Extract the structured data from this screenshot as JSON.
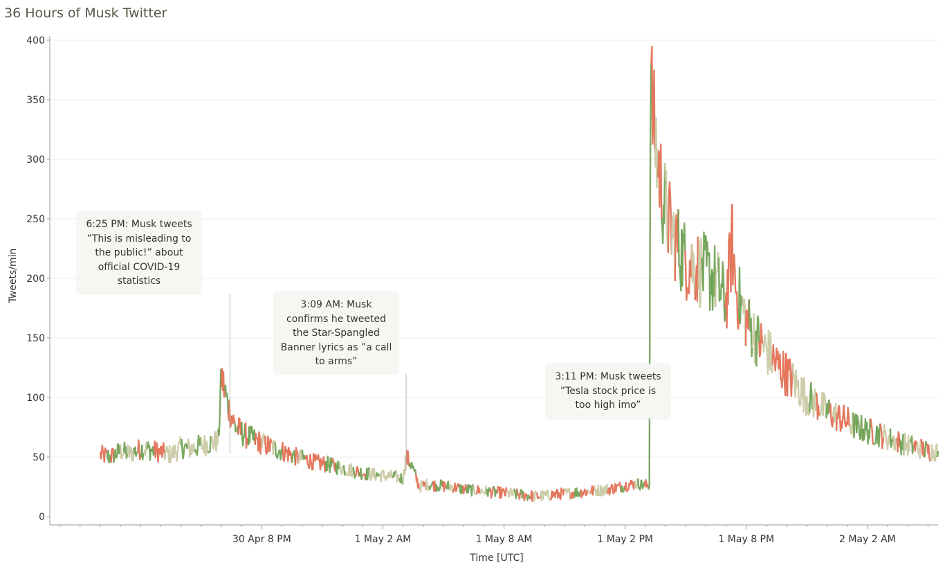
{
  "chart_data": {
    "type": "line",
    "title": "36 Hours of Musk Twitter",
    "xlabel": "Time [UTC]",
    "ylabel": "Tweets/min",
    "ylim": [
      0,
      400
    ],
    "xlim_hours_from_30apr_12pm": [
      -2.5,
      41.5
    ],
    "yticks": [
      "0",
      "50",
      "100",
      "150",
      "200",
      "250",
      "300",
      "350",
      "400"
    ],
    "xticks": [
      {
        "label": "30 Apr 8 PM",
        "hours": 8
      },
      {
        "label": "1 May 2 AM",
        "hours": 14
      },
      {
        "label": "1 May 8 AM",
        "hours": 20
      },
      {
        "label": "1 May 2 PM",
        "hours": 26
      },
      {
        "label": "1 May 8 PM",
        "hours": 32
      },
      {
        "label": "2 May 2 AM",
        "hours": 38
      }
    ],
    "grid": true,
    "colors": {
      "low": "#6b9f4f",
      "mid": "#c9c9a3",
      "high": "#e26a4f"
    },
    "series": [
      {
        "name": "",
        "points": [
          [
            0,
            52
          ],
          [
            0.5,
            50
          ],
          [
            1,
            55
          ],
          [
            1.5,
            53
          ],
          [
            2,
            57
          ],
          [
            2.5,
            56
          ],
          [
            3,
            54
          ],
          [
            3.5,
            52
          ],
          [
            4,
            58
          ],
          [
            4.5,
            57
          ],
          [
            5,
            60
          ],
          [
            5.5,
            62
          ],
          [
            5.85,
            64
          ],
          [
            6,
            118
          ],
          [
            6.3,
            95
          ],
          [
            6.7,
            75
          ],
          [
            7.2,
            68
          ],
          [
            7.7,
            64
          ],
          [
            8.2,
            60
          ],
          [
            8.7,
            57
          ],
          [
            9.2,
            54
          ],
          [
            9.7,
            50
          ],
          [
            10.2,
            48
          ],
          [
            10.7,
            45
          ],
          [
            11.2,
            44
          ],
          [
            11.7,
            42
          ],
          [
            12.2,
            40
          ],
          [
            12.7,
            38
          ],
          [
            13.2,
            36
          ],
          [
            13.7,
            35
          ],
          [
            14.2,
            34
          ],
          [
            14.7,
            33
          ],
          [
            15,
            32
          ],
          [
            15.15,
            50
          ],
          [
            15.4,
            44
          ],
          [
            15.8,
            25
          ],
          [
            16.2,
            27
          ],
          [
            16.8,
            26
          ],
          [
            17.4,
            25
          ],
          [
            18,
            23
          ],
          [
            18.6,
            22
          ],
          [
            19.2,
            21
          ],
          [
            19.8,
            20
          ],
          [
            20.4,
            19
          ],
          [
            21,
            18
          ],
          [
            21.6,
            17
          ],
          [
            22.2,
            18
          ],
          [
            22.8,
            19
          ],
          [
            23.4,
            20
          ],
          [
            24,
            21
          ],
          [
            24.6,
            22
          ],
          [
            25.2,
            23
          ],
          [
            25.8,
            25
          ],
          [
            26.2,
            27
          ],
          [
            26.6,
            28
          ],
          [
            27,
            26
          ],
          [
            27.2,
            27
          ],
          [
            27.25,
            370
          ],
          [
            27.4,
            330
          ],
          [
            27.6,
            300
          ],
          [
            27.9,
            265
          ],
          [
            28.2,
            245
          ],
          [
            28.6,
            228
          ],
          [
            29,
            215
          ],
          [
            29.5,
            210
          ],
          [
            30,
            205
          ],
          [
            30.5,
            198
          ],
          [
            31,
            180
          ],
          [
            31.3,
            230
          ],
          [
            31.5,
            190
          ],
          [
            32,
            165
          ],
          [
            32.5,
            150
          ],
          [
            33,
            140
          ],
          [
            33.5,
            128
          ],
          [
            34,
            120
          ],
          [
            34.5,
            110
          ],
          [
            35,
            100
          ],
          [
            35.5,
            95
          ],
          [
            36,
            88
          ],
          [
            36.5,
            84
          ],
          [
            37,
            80
          ],
          [
            37.5,
            75
          ],
          [
            38,
            72
          ],
          [
            38.5,
            70
          ],
          [
            39,
            66
          ],
          [
            39.5,
            63
          ],
          [
            40,
            60
          ],
          [
            40.5,
            58
          ],
          [
            41,
            55
          ],
          [
            41.5,
            55
          ]
        ]
      }
    ],
    "annotations": [
      {
        "lines": [
          "6:25 PM: Musk tweets",
          "”This is misleading to",
          "the public!” about",
          "official COVID-19",
          "statistics"
        ],
        "time_hours": 6.42
      },
      {
        "lines": [
          "3:09 AM: Musk",
          "confirms he tweeted",
          "the Star-Spangled",
          "Banner lyrics as ”a call",
          "to arms”"
        ],
        "time_hours": 15.15
      },
      {
        "lines": [
          "3:11 PM: Musk tweets",
          "”Tesla stock price is",
          "too high imo”"
        ],
        "time_hours": 27.18
      }
    ]
  }
}
